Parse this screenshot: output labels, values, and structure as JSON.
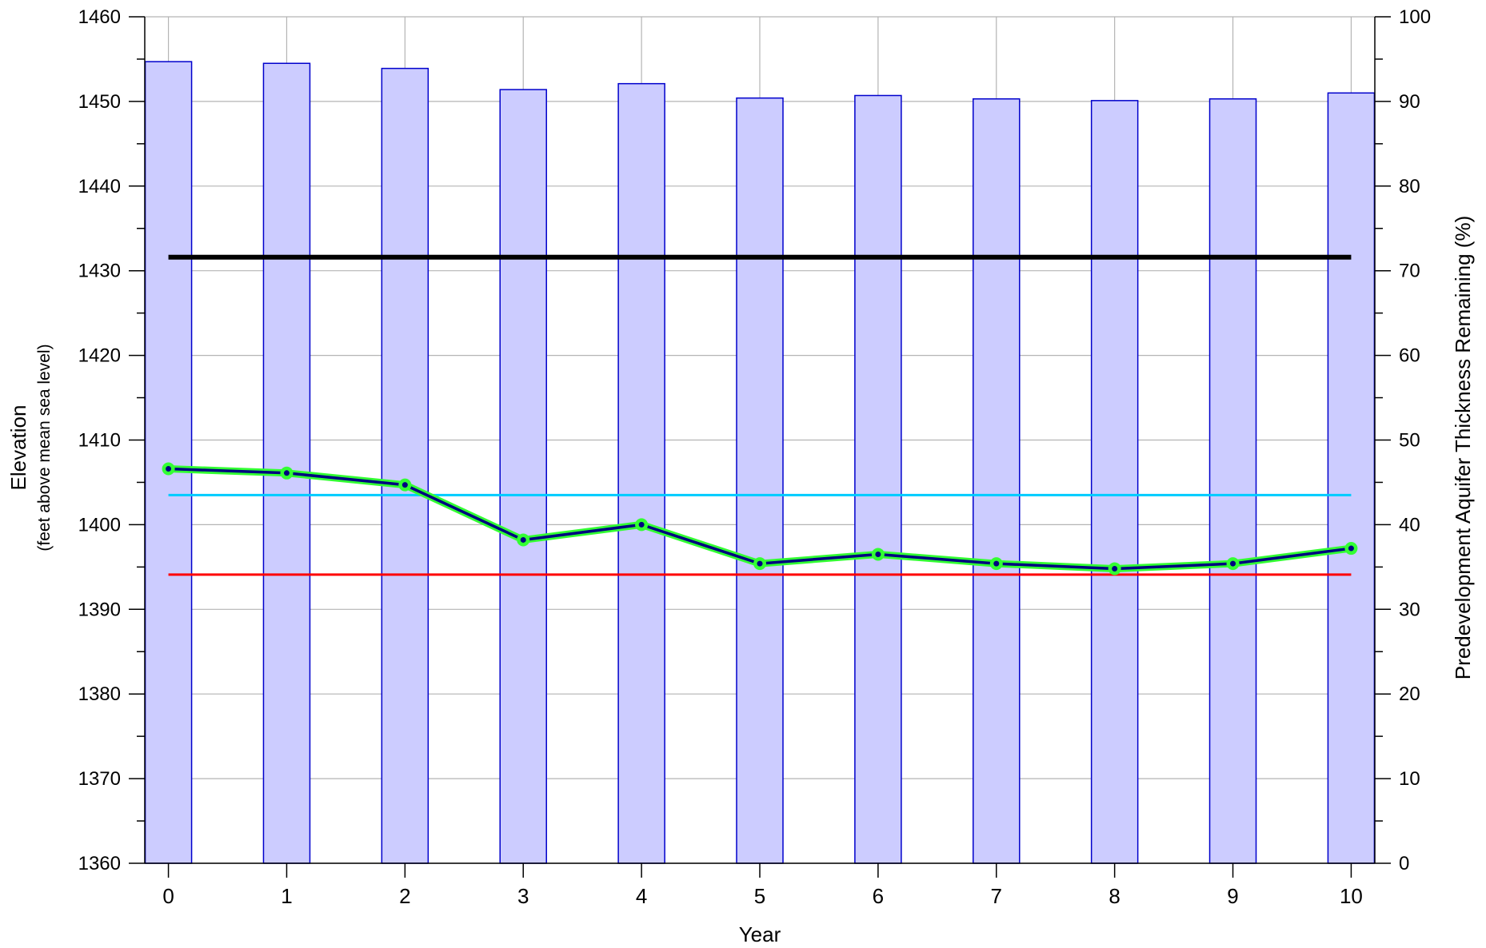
{
  "chart_data": {
    "type": "bar",
    "xlabel": "Year",
    "ylabel": "Elevation",
    "ylabel_sub": "(feet above mean sea level)",
    "y2label": "Predevelopment Aquifer Thickness Remaining (%)",
    "x": [
      0,
      1,
      2,
      3,
      4,
      5,
      6,
      7,
      8,
      9,
      10
    ],
    "x_ticks": [
      "0",
      "1",
      "2",
      "3",
      "4",
      "5",
      "6",
      "7",
      "8",
      "9",
      "10"
    ],
    "ylim": [
      1360,
      1460
    ],
    "y_ticks": [
      "1360",
      "1370",
      "1380",
      "1390",
      "1400",
      "1410",
      "1420",
      "1430",
      "1440",
      "1450",
      "1460"
    ],
    "y2lim": [
      0,
      100
    ],
    "y2_ticks": [
      "0",
      "10",
      "20",
      "30",
      "40",
      "50",
      "60",
      "70",
      "80",
      "90",
      "100"
    ],
    "grid": true,
    "bars": {
      "axis": "right",
      "values": [
        94.7,
        94.5,
        93.9,
        91.4,
        92.1,
        90.4,
        90.7,
        90.3,
        90.1,
        90.3,
        91.0
      ],
      "fill": "#ccccff",
      "stroke": "#0000cc"
    },
    "series": [
      {
        "type": "line",
        "axis": "left",
        "values": [
          1406.6,
          1406.1,
          1404.7,
          1398.2,
          1400.0,
          1395.4,
          1396.5,
          1395.4,
          1394.8,
          1395.4,
          1397.2
        ],
        "color": "#000080",
        "outline": "#33ff33",
        "markers": true
      },
      {
        "type": "hline",
        "axis": "left",
        "value": 1431.6,
        "color": "#000000"
      },
      {
        "type": "hline",
        "axis": "left",
        "value": 1403.5,
        "color": "#00ccff"
      },
      {
        "type": "hline",
        "axis": "left",
        "value": 1394.1,
        "color": "#ff0000"
      }
    ]
  }
}
